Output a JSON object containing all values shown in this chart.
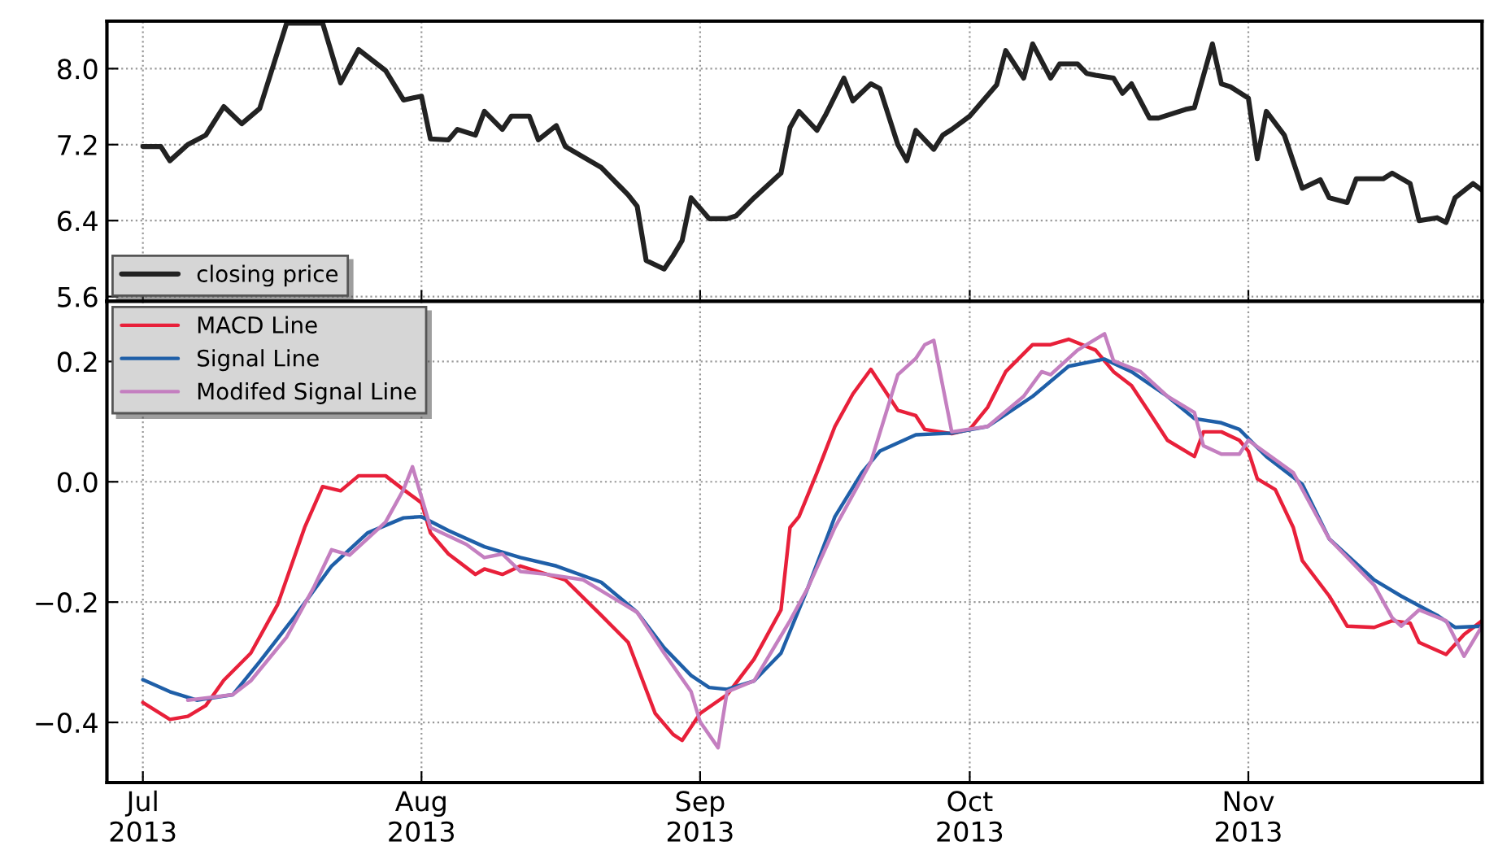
{
  "chart_data": [
    {
      "type": "line",
      "xlim": [
        "2013-06-27",
        "2013-11-27"
      ],
      "ylim": [
        5.55,
        8.5
      ],
      "yticks": [
        5.6,
        6.4,
        7.2,
        {
          "value": 8,
          "label": "8.0"
        }
      ],
      "xticks": [
        {
          "value": "2013-07-01",
          "label": null
        },
        {
          "value": "2013-08-01",
          "label": null
        },
        {
          "value": "2013-09-01",
          "label": null
        },
        {
          "value": "2013-10-01",
          "label": null
        },
        {
          "value": "2013-11-01",
          "label": null
        }
      ],
      "tick_labels": "y",
      "grid": true,
      "legend": "bottom left",
      "line_style": "solid",
      "series": [
        {
          "name": "closing price",
          "color": "#222222",
          "x": [
            "2013-07-01",
            "2013-07-03",
            "2013-07-04",
            "2013-07-06",
            "2013-07-08",
            "2013-07-10",
            "2013-07-12",
            "2013-07-14",
            "2013-07-17",
            "2013-07-21",
            "2013-07-23",
            "2013-07-25",
            "2013-07-28",
            "2013-07-30",
            "2013-08-01",
            "2013-08-02",
            "2013-08-04",
            "2013-08-05",
            "2013-08-07",
            "2013-08-08",
            "2013-08-10",
            "2013-08-11",
            "2013-08-13",
            "2013-08-14",
            "2013-08-16",
            "2013-08-17",
            "2013-08-21",
            "2013-08-24",
            "2013-08-25",
            "2013-08-26",
            "2013-08-28",
            "2013-08-29",
            "2013-08-30",
            "2013-08-31",
            "2013-09-02",
            "2013-09-04",
            "2013-09-05",
            "2013-09-07",
            "2013-09-10",
            "2013-09-11",
            "2013-09-12",
            "2013-09-14",
            "2013-09-15",
            "2013-09-17",
            "2013-09-18",
            "2013-09-20",
            "2013-09-21",
            "2013-09-23",
            "2013-09-24",
            "2013-09-25",
            "2013-09-27",
            "2013-09-28",
            "2013-09-29",
            "2013-10-01",
            "2013-10-04",
            "2013-10-05",
            "2013-10-07",
            "2013-10-08",
            "2013-10-10",
            "2013-10-11",
            "2013-10-13",
            "2013-10-14",
            "2013-10-15",
            "2013-10-17",
            "2013-10-18",
            "2013-10-19",
            "2013-10-21",
            "2013-10-22",
            "2013-10-25",
            "2013-10-26",
            "2013-10-28",
            "2013-10-29",
            "2013-10-30",
            "2013-11-01",
            "2013-11-02",
            "2013-11-03",
            "2013-11-05",
            "2013-11-07",
            "2013-11-09",
            "2013-11-10",
            "2013-11-12",
            "2013-11-13",
            "2013-11-16",
            "2013-11-17",
            "2013-11-19",
            "2013-11-20",
            "2013-11-22",
            "2013-11-23",
            "2013-11-24",
            "2013-11-26",
            "2013-11-27"
          ],
          "values": [
            7.18,
            7.18,
            7.03,
            7.2,
            7.3,
            7.6,
            7.42,
            7.58,
            8.48,
            8.48,
            7.85,
            8.2,
            7.98,
            7.67,
            7.71,
            7.26,
            7.25,
            7.36,
            7.3,
            7.55,
            7.36,
            7.5,
            7.5,
            7.25,
            7.4,
            7.18,
            6.96,
            6.67,
            6.55,
            5.98,
            5.89,
            6.03,
            6.19,
            6.64,
            6.42,
            6.42,
            6.45,
            6.64,
            6.9,
            7.38,
            7.55,
            7.35,
            7.52,
            7.9,
            7.66,
            7.84,
            7.79,
            7.2,
            7.03,
            7.35,
            7.15,
            7.3,
            7.36,
            7.5,
            7.83,
            8.19,
            7.9,
            8.26,
            7.9,
            8.05,
            8.05,
            7.95,
            7.93,
            7.9,
            7.74,
            7.84,
            7.48,
            7.48,
            7.57,
            7.59,
            8.26,
            7.84,
            7.81,
            7.69,
            7.05,
            7.55,
            7.3,
            6.74,
            6.83,
            6.64,
            6.59,
            6.84,
            6.84,
            6.9,
            6.79,
            6.4,
            6.43,
            6.38,
            6.64,
            6.79,
            6.72
          ]
        }
      ]
    },
    {
      "type": "line",
      "xlim": [
        "2013-06-27",
        "2013-11-27"
      ],
      "ylim": [
        -0.5,
        0.3
      ],
      "yticks": [
        {
          "value": -0.4,
          "label": "−0.4"
        },
        {
          "value": -0.2,
          "label": "−0.2"
        },
        {
          "value": 0,
          "label": "0.0"
        },
        0.2
      ],
      "xticks": [
        {
          "value": "2013-07-01",
          "label": "Jul\n2013"
        },
        {
          "value": "2013-08-01",
          "label": "Aug\n2013"
        },
        {
          "value": "2013-09-01",
          "label": "Sep\n2013"
        },
        {
          "value": "2013-10-01",
          "label": "Oct\n2013"
        },
        {
          "value": "2013-11-01",
          "label": "Nov\n2013"
        }
      ],
      "grid": true,
      "legend": "top left",
      "line_style": "solid",
      "series": [
        {
          "name": "MACD Line",
          "color": "#e8203a",
          "x": [
            "2013-07-01",
            "2013-07-04",
            "2013-07-06",
            "2013-07-08",
            "2013-07-10",
            "2013-07-13",
            "2013-07-16",
            "2013-07-19",
            "2013-07-21",
            "2013-07-23",
            "2013-07-25",
            "2013-07-28",
            "2013-07-30",
            "2013-08-01",
            "2013-08-02",
            "2013-08-04",
            "2013-08-07",
            "2013-08-08",
            "2013-08-10",
            "2013-08-12",
            "2013-08-15",
            "2013-08-17",
            "2013-08-21",
            "2013-08-24",
            "2013-08-27",
            "2013-08-29",
            "2013-08-30",
            "2013-09-01",
            "2013-09-04",
            "2013-09-07",
            "2013-09-10",
            "2013-09-11",
            "2013-09-12",
            "2013-09-14",
            "2013-09-16",
            "2013-09-18",
            "2013-09-20",
            "2013-09-23",
            "2013-09-25",
            "2013-09-26",
            "2013-09-29",
            "2013-10-01",
            "2013-10-03",
            "2013-10-05",
            "2013-10-08",
            "2013-10-10",
            "2013-10-12",
            "2013-10-15",
            "2013-10-17",
            "2013-10-19",
            "2013-10-21",
            "2013-10-23",
            "2013-10-26",
            "2013-10-27",
            "2013-10-29",
            "2013-10-31",
            "2013-11-01",
            "2013-11-02",
            "2013-11-04",
            "2013-11-06",
            "2013-11-07",
            "2013-11-10",
            "2013-11-12",
            "2013-11-15",
            "2013-11-17",
            "2013-11-19",
            "2013-11-20",
            "2013-11-23",
            "2013-11-25",
            "2013-11-27"
          ],
          "values": [
            -0.367,
            -0.395,
            -0.39,
            -0.372,
            -0.33,
            -0.285,
            -0.204,
            -0.076,
            -0.008,
            -0.015,
            0.01,
            0.01,
            -0.013,
            -0.035,
            -0.085,
            -0.12,
            -0.154,
            -0.145,
            -0.154,
            -0.14,
            -0.154,
            -0.163,
            -0.222,
            -0.267,
            -0.385,
            -0.42,
            -0.43,
            -0.385,
            -0.354,
            -0.295,
            -0.213,
            -0.076,
            -0.058,
            0.015,
            0.092,
            0.146,
            0.187,
            0.119,
            0.11,
            0.087,
            0.08,
            0.087,
            0.124,
            0.183,
            0.228,
            0.228,
            0.237,
            0.219,
            0.183,
            0.16,
            0.115,
            0.069,
            0.042,
            0.083,
            0.083,
            0.069,
            0.051,
            0.005,
            -0.013,
            -0.076,
            -0.131,
            -0.19,
            -0.24,
            -0.242,
            -0.231,
            -0.235,
            -0.267,
            -0.287,
            -0.254,
            -0.231
          ]
        },
        {
          "name": "Signal Line",
          "color": "#1f5fa8",
          "x": [
            "2013-07-01",
            "2013-07-04",
            "2013-07-07",
            "2013-07-11",
            "2013-07-14",
            "2013-07-18",
            "2013-07-22",
            "2013-07-26",
            "2013-07-30",
            "2013-08-01",
            "2013-08-04",
            "2013-08-08",
            "2013-08-12",
            "2013-08-16",
            "2013-08-21",
            "2013-08-25",
            "2013-08-28",
            "2013-08-31",
            "2013-09-02",
            "2013-09-04",
            "2013-09-07",
            "2013-09-10",
            "2013-09-13",
            "2013-09-16",
            "2013-09-19",
            "2013-09-21",
            "2013-09-25",
            "2013-09-29",
            "2013-10-03",
            "2013-10-08",
            "2013-10-12",
            "2013-10-16",
            "2013-10-19",
            "2013-10-23",
            "2013-10-26",
            "2013-10-29",
            "2013-10-31",
            "2013-11-03",
            "2013-11-07",
            "2013-11-10",
            "2013-11-15",
            "2013-11-18",
            "2013-11-22",
            "2013-11-24",
            "2013-11-27"
          ],
          "values": [
            -0.329,
            -0.349,
            -0.363,
            -0.354,
            -0.299,
            -0.222,
            -0.14,
            -0.085,
            -0.06,
            -0.058,
            -0.081,
            -0.108,
            -0.126,
            -0.14,
            -0.167,
            -0.217,
            -0.276,
            -0.322,
            -0.342,
            -0.345,
            -0.331,
            -0.285,
            -0.176,
            -0.058,
            0.015,
            0.051,
            0.078,
            0.081,
            0.092,
            0.142,
            0.192,
            0.204,
            0.183,
            0.142,
            0.105,
            0.098,
            0.087,
            0.042,
            -0.004,
            -0.095,
            -0.163,
            -0.19,
            -0.222,
            -0.242,
            -0.24
          ]
        },
        {
          "name": "Modifed Signal Line",
          "color": "#c47fc0",
          "x": [
            "2013-07-06",
            "2013-07-11",
            "2013-07-13",
            "2013-07-17",
            "2013-07-20",
            "2013-07-22",
            "2013-07-24",
            "2013-07-28",
            "2013-07-30",
            "2013-07-31",
            "2013-08-02",
            "2013-08-06",
            "2013-08-08",
            "2013-08-10",
            "2013-08-12",
            "2013-08-15",
            "2013-08-19",
            "2013-08-25",
            "2013-08-28",
            "2013-08-31",
            "2013-09-01",
            "2013-09-03",
            "2013-09-04",
            "2013-09-07",
            "2013-09-11",
            "2013-09-13",
            "2013-09-16",
            "2013-09-20",
            "2013-09-23",
            "2013-09-25",
            "2013-09-26",
            "2013-09-27",
            "2013-09-29",
            "2013-10-03",
            "2013-10-07",
            "2013-10-09",
            "2013-10-10",
            "2013-10-13",
            "2013-10-16",
            "2013-10-17",
            "2013-10-20",
            "2013-10-23",
            "2013-10-26",
            "2013-10-27",
            "2013-10-29",
            "2013-10-31",
            "2013-11-01",
            "2013-11-06",
            "2013-11-10",
            "2013-11-15",
            "2013-11-17",
            "2013-11-18",
            "2013-11-20",
            "2013-11-23",
            "2013-11-25",
            "2013-11-27"
          ],
          "values": [
            -0.363,
            -0.354,
            -0.331,
            -0.258,
            -0.176,
            -0.113,
            -0.122,
            -0.067,
            -0.013,
            0.025,
            -0.076,
            -0.104,
            -0.126,
            -0.12,
            -0.149,
            -0.154,
            -0.163,
            -0.217,
            -0.285,
            -0.349,
            -0.399,
            -0.442,
            -0.349,
            -0.331,
            -0.231,
            -0.176,
            -0.076,
            0.033,
            0.178,
            0.205,
            0.228,
            0.235,
            0.083,
            0.092,
            0.142,
            0.183,
            0.178,
            0.219,
            0.246,
            0.201,
            0.183,
            0.142,
            0.115,
            0.06,
            0.046,
            0.046,
            0.069,
            0.015,
            -0.095,
            -0.172,
            -0.226,
            -0.24,
            -0.213,
            -0.231,
            -0.29,
            -0.24
          ]
        }
      ]
    }
  ]
}
